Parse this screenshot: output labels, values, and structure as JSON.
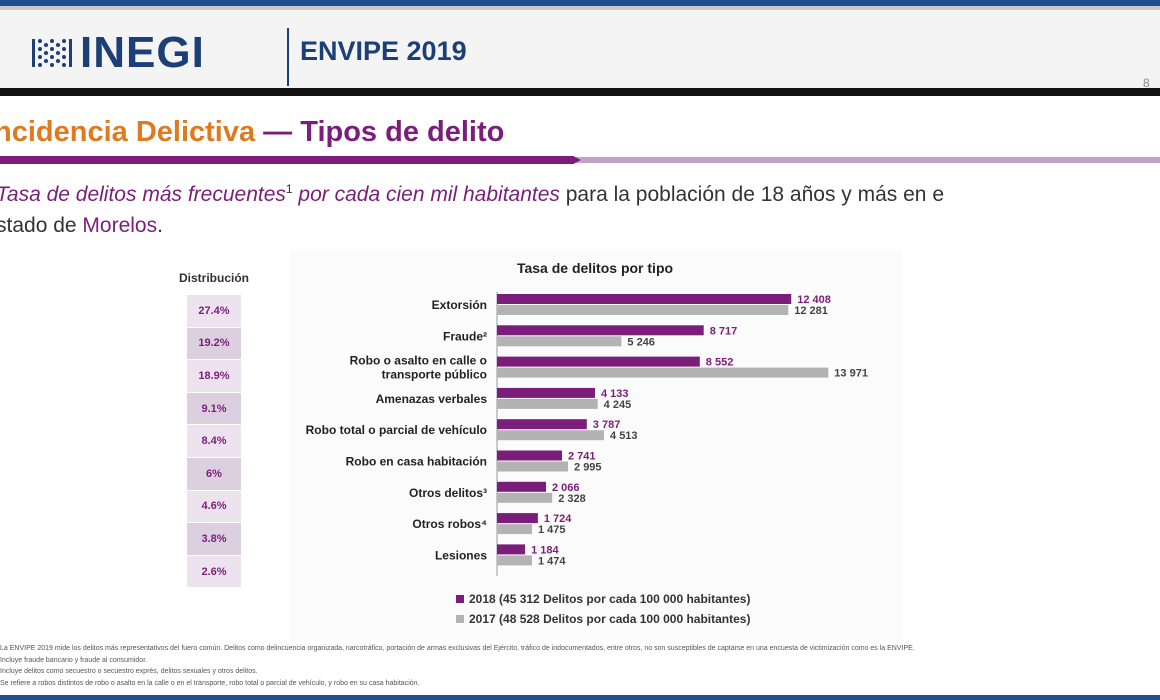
{
  "header": {
    "logo_text": "INEGI",
    "survey_title": "ENVIPE 2019",
    "page_number": "8"
  },
  "title": {
    "part1": "ncidencia Delictiva",
    "dash": " — ",
    "part2": "Tipos de delito"
  },
  "subtitle": {
    "em1": "Tasa de delitos más frecuentes",
    "sup": "1",
    "em2": " por cada cien mil habitantes",
    "plain1": " para la población de 18 años y más en e",
    "plain2": "stado de ",
    "place": "Morelos",
    "end": "."
  },
  "distribution": {
    "title": "Distribución",
    "values": [
      "27.4%",
      "19.2%",
      "18.9%",
      "9.1%",
      "8.4%",
      "6%",
      "4.6%",
      "3.8%",
      "2.6%"
    ]
  },
  "chart_data": {
    "type": "bar",
    "orientation": "horizontal",
    "title": "Tasa de delitos por tipo",
    "categories": [
      [
        "Extorsión"
      ],
      [
        "Fraude²"
      ],
      [
        "Robo o asalto en calle o",
        "transporte público"
      ],
      [
        "Amenazas verbales"
      ],
      [
        "Robo total o parcial de vehículo"
      ],
      [
        "Robo en casa habitación"
      ],
      [
        "Otros delitos³"
      ],
      [
        "Otros robos⁴"
      ],
      [
        "Lesiones"
      ]
    ],
    "series": [
      {
        "name": "2018 (45 312 Delitos por cada 100 000 habitantes)",
        "color": "#7b1d7a",
        "values": [
          12408,
          8717,
          8552,
          4133,
          3787,
          2741,
          2066,
          1724,
          1184
        ],
        "labels": [
          "12 408",
          "8 717",
          "8 552",
          "4 133",
          "3 787",
          "2 741",
          "2 066",
          "1 724",
          "1 184"
        ]
      },
      {
        "name": "2017 (48 528 Delitos por cada 100 000 habitantes)",
        "color": "#b3b3b3",
        "values": [
          12281,
          5246,
          13971,
          4245,
          4513,
          2995,
          2328,
          1475,
          1474
        ],
        "labels": [
          "12 281",
          "5 246",
          "13 971",
          "4 245",
          "4 513",
          "2 995",
          "2 328",
          "1 475",
          "1 474"
        ]
      }
    ],
    "xlim": [
      0,
      14000
    ],
    "grid": false,
    "legend_position": "bottom"
  },
  "footnotes": [
    "La ENVIPE 2019 mide los delitos más representativos del fuero común. Delitos como delincuencia organizada, narcotráfico, portación de armas exclusivas del Ejército, tráfico de indocumentados, entre otros, no son susceptibles de captarse en una encuesta de victimización como es la ENVIPE.",
    "Incluye fraude bancario y fraude al consumidor.",
    "Incluye delitos como secuestro o secuestro exprés, delitos sexuales y otros delitos.",
    "Se refiere a robos distintos de robo o asalto en la calle o en el transporte, robo total o parcial de vehículo, y robo en su casa habitación."
  ]
}
